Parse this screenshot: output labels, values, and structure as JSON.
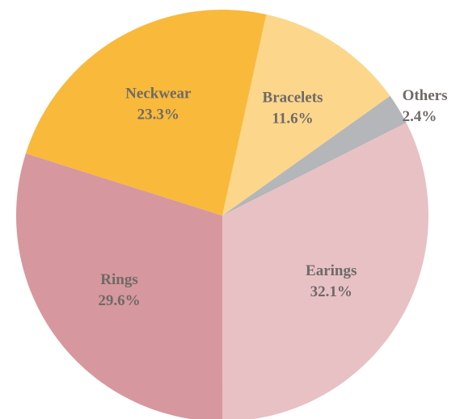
{
  "chart_data": {
    "type": "pie",
    "categories": [
      "Bracelets",
      "Others",
      "Earings",
      "Rings",
      "Neckwear"
    ],
    "values": [
      11.6,
      2.4,
      32.1,
      29.6,
      23.3
    ],
    "value_labels": [
      "11.6%",
      "2.4%",
      "32.1%",
      "29.6%",
      "23.3%"
    ],
    "colors": [
      "#fcd68b",
      "#b4b6b9",
      "#e8c1c4",
      "#d6989e",
      "#f9b93b"
    ]
  }
}
